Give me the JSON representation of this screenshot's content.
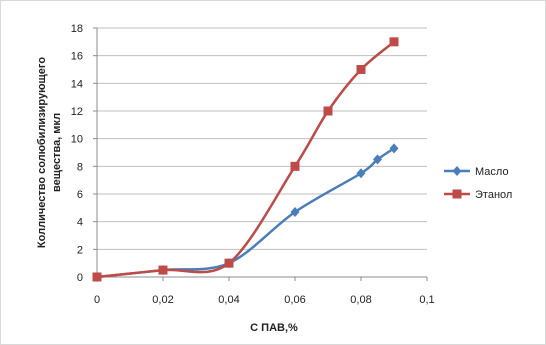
{
  "chart_data": {
    "type": "line",
    "title": "",
    "xlabel": "С ПАВ,%",
    "ylabel_lines": [
      "Колличество солюбилизирующего",
      "вещества, мкл"
    ],
    "xlim": [
      0,
      0.1
    ],
    "ylim": [
      0,
      18
    ],
    "x_ticks": [
      0,
      0.02,
      0.04,
      0.06,
      0.08,
      0.1
    ],
    "x_tick_labels": [
      "0",
      "0,02",
      "0,04",
      "0,06",
      "0,08",
      "0,1"
    ],
    "y_ticks": [
      0,
      2,
      4,
      6,
      8,
      10,
      12,
      14,
      16,
      18
    ],
    "y_tick_labels": [
      "0",
      "2",
      "4",
      "6",
      "8",
      "10",
      "12",
      "14",
      "16",
      "18"
    ],
    "grid": "horizontal",
    "legend_position": "right",
    "series": [
      {
        "name": "Масло",
        "color": "#4a7ebb",
        "marker": "diamond",
        "x": [
          0,
          0.02,
          0.04,
          0.06,
          0.08,
          0.085,
          0.09
        ],
        "y": [
          0,
          0.5,
          1.0,
          4.7,
          7.5,
          8.5,
          9.3
        ]
      },
      {
        "name": "Этанол",
        "color": "#be4b48",
        "marker": "square",
        "x": [
          0,
          0.02,
          0.04,
          0.06,
          0.07,
          0.08,
          0.09
        ],
        "y": [
          0,
          0.5,
          1.0,
          8.0,
          12.0,
          15.0,
          17.0
        ]
      }
    ]
  }
}
